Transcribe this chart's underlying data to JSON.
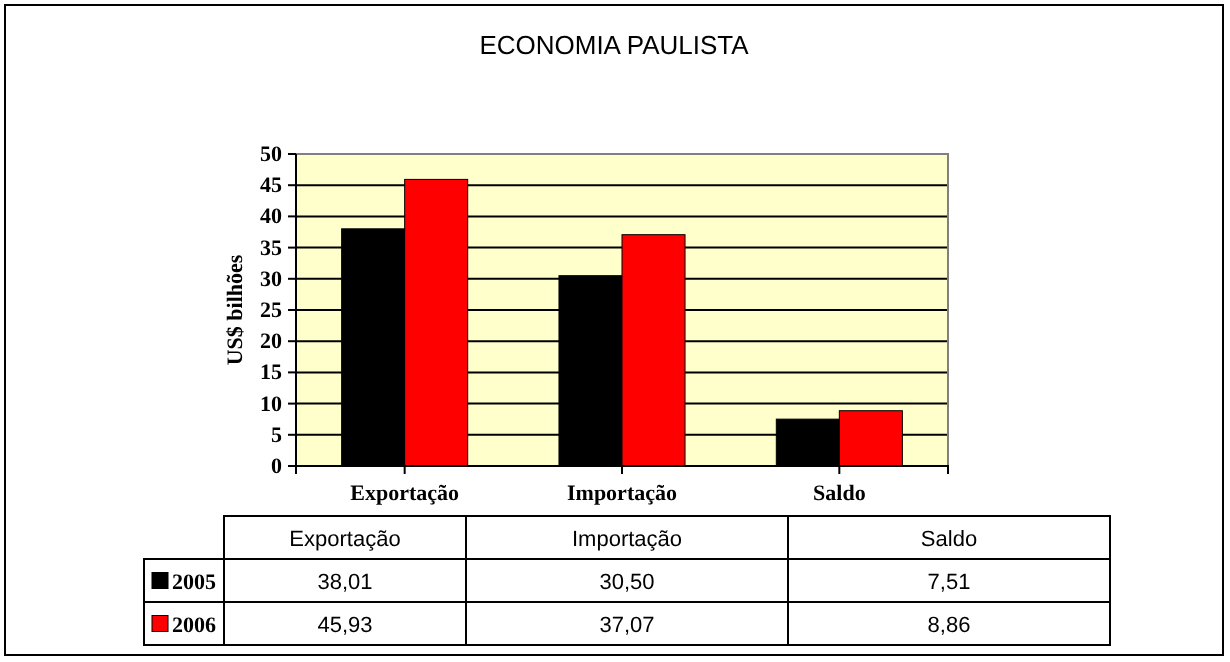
{
  "chart_data": {
    "type": "bar",
    "title": "ECONOMIA PAULISTA",
    "ylabel": "US$ bilhões",
    "categories": [
      "Exportação",
      "Importação",
      "Saldo"
    ],
    "series": [
      {
        "name": "2005",
        "color": "#000000",
        "values": [
          38.01,
          30.5,
          7.51
        ],
        "value_labels": [
          "38,01",
          "30,50",
          "7,51"
        ]
      },
      {
        "name": "2006",
        "color": "#ff0000",
        "values": [
          45.93,
          37.07,
          8.86
        ],
        "value_labels": [
          "45,93",
          "37,07",
          "8,86"
        ]
      }
    ],
    "ylim": [
      0,
      50
    ],
    "yticks": [
      0,
      5,
      10,
      15,
      20,
      25,
      30,
      35,
      40,
      45,
      50
    ],
    "grid": "y",
    "legend": "bottom"
  }
}
